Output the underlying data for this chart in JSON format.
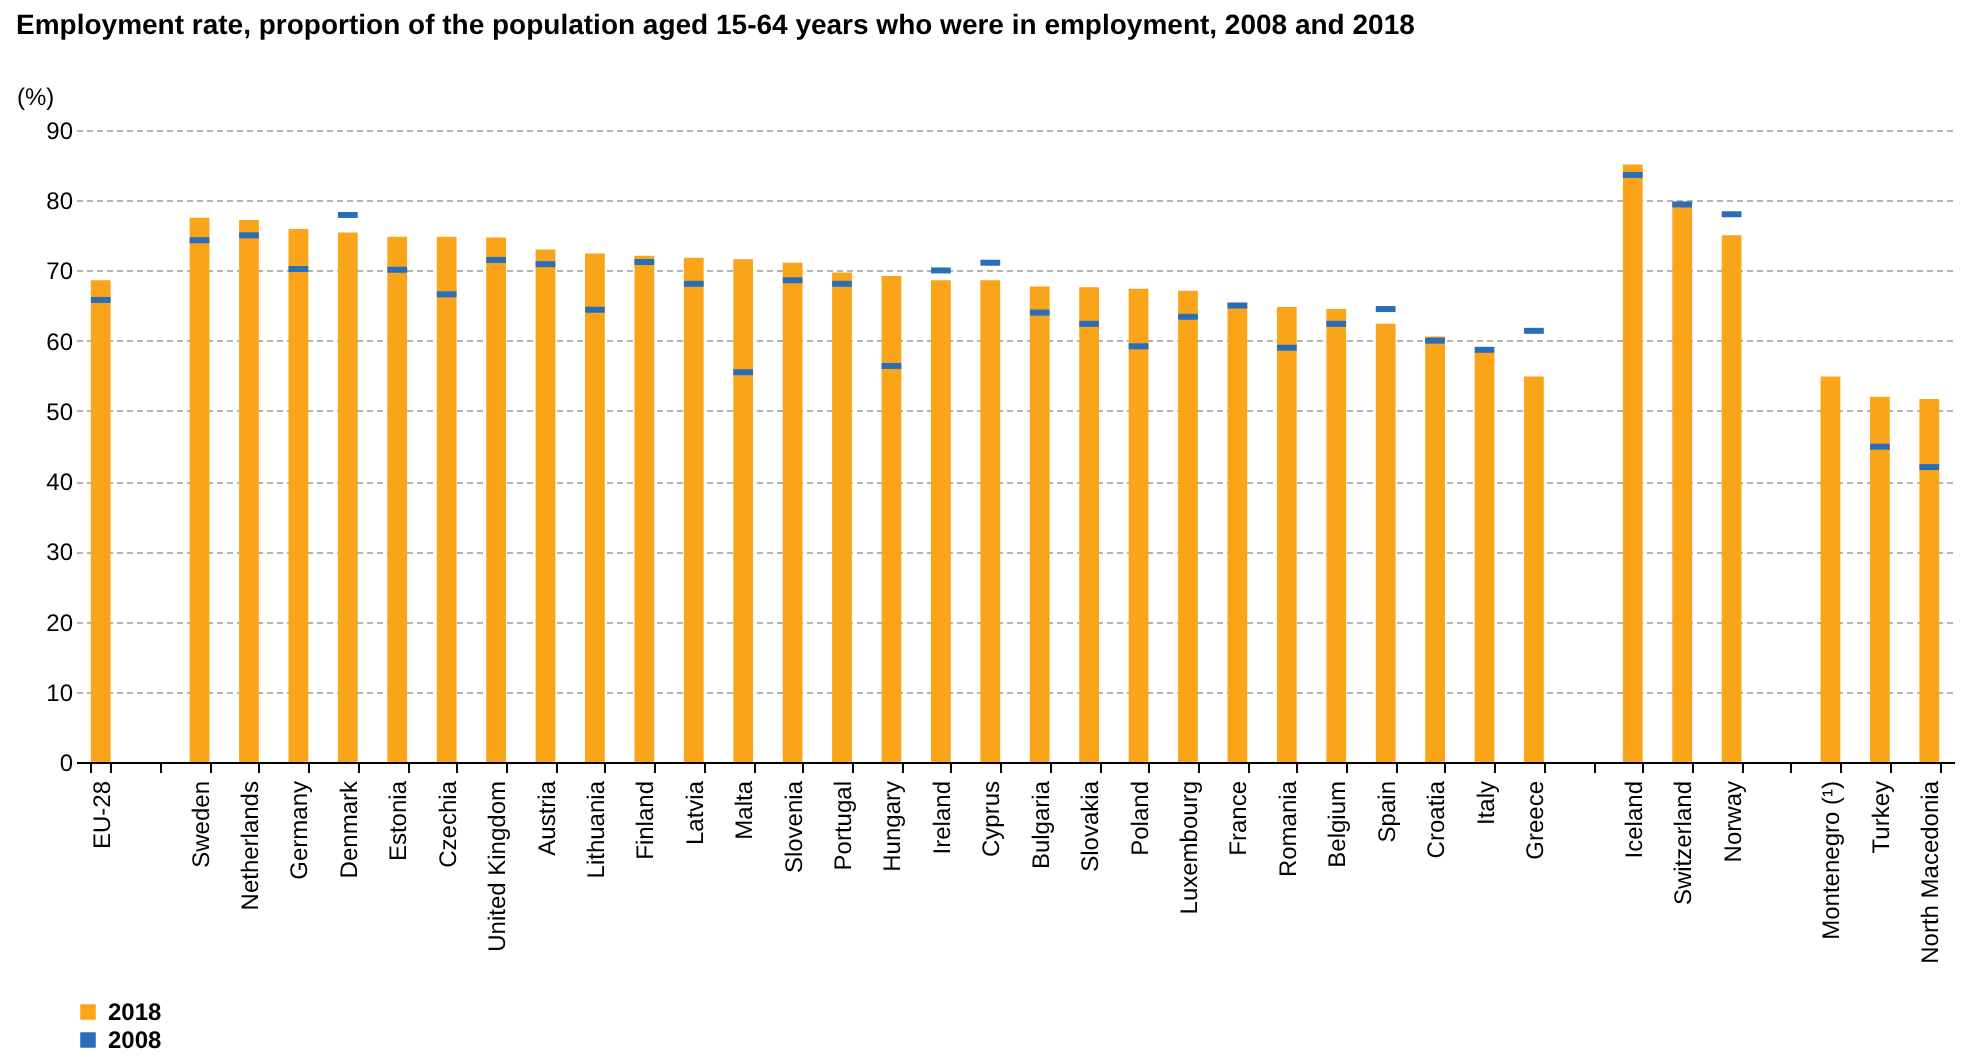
{
  "chart_data": {
    "type": "bar",
    "title": "Employment rate, proportion of the population aged 15-64 years who were in employment, 2008 and 2018",
    "ylabel": "(%)",
    "categories": [
      "EU-28",
      null,
      "Sweden",
      "Netherlands",
      "Germany",
      "Denmark",
      "Estonia",
      "Czechia",
      "United Kingdom",
      "Austria",
      "Lithuania",
      "Finland",
      "Latvia",
      "Malta",
      "Slovenia",
      "Portugal",
      "Hungary",
      "Ireland",
      "Cyprus",
      "Bulgaria",
      "Slovakia",
      "Poland",
      "Luxembourg",
      "France",
      "Romania",
      "Belgium",
      "Spain",
      "Croatia",
      "Italy",
      "Greece",
      null,
      "Iceland",
      "Switzerland",
      "Norway",
      null,
      "Montenegro (¹)",
      "Turkey",
      "North Macedonia"
    ],
    "series": [
      {
        "name": "2018",
        "color": "#faa519",
        "values": [
          68.6,
          null,
          77.5,
          77.2,
          75.9,
          75.4,
          74.8,
          74.8,
          74.7,
          73.0,
          72.4,
          72.1,
          71.8,
          71.6,
          71.1,
          69.7,
          69.2,
          68.6,
          68.6,
          67.7,
          67.6,
          67.4,
          67.1,
          65.4,
          64.8,
          64.5,
          62.4,
          60.6,
          58.5,
          54.9,
          null,
          85.1,
          79.8,
          75.0,
          null,
          54.9,
          52.0,
          51.7
        ]
      },
      {
        "name": "2008",
        "type": "scatter",
        "color": "#2a6ebb",
        "values": [
          65.8,
          null,
          74.3,
          75.0,
          70.2,
          77.9,
          70.1,
          66.6,
          71.5,
          70.9,
          64.4,
          71.2,
          68.1,
          55.5,
          68.6,
          68.1,
          56.4,
          70.0,
          71.1,
          64.0,
          62.4,
          59.2,
          63.4,
          65.0,
          59.0,
          62.4,
          64.5,
          60.0,
          58.7,
          61.4,
          null,
          83.6,
          79.4,
          78.0,
          null,
          null,
          44.9,
          42.0
        ]
      }
    ],
    "ylim": [
      0,
      90
    ],
    "yticks": [
      0,
      10,
      20,
      30,
      40,
      50,
      60,
      70,
      80,
      90
    ],
    "grid": "y",
    "legend": "bottom"
  }
}
